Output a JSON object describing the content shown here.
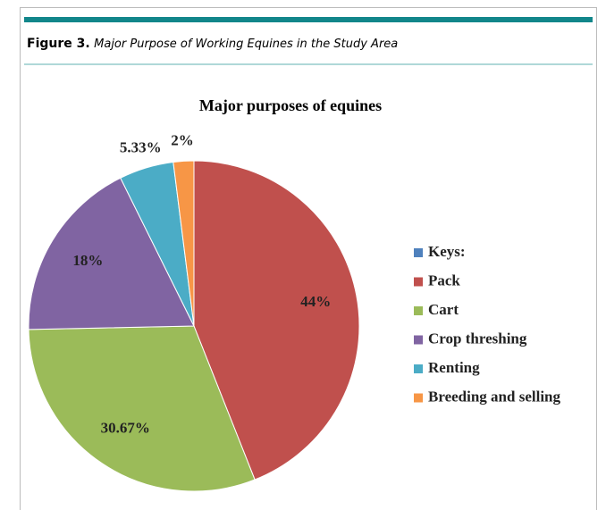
{
  "figure": {
    "label": "Figure 3.",
    "caption": "Major Purpose of Working Equines in the Study Area"
  },
  "chart_data": {
    "type": "pie",
    "title": "Major purposes of equines",
    "categories": [
      "Keys:",
      "Pack",
      "Cart",
      "Crop threshing",
      "Renting",
      "Breeding and selling"
    ],
    "values": [
      0,
      44,
      30.67,
      18,
      5.33,
      2
    ],
    "value_labels": [
      null,
      "44%",
      "30.67%",
      "18%",
      "5.33%",
      "2%"
    ],
    "colors": [
      "#4f81bd",
      "#c0504d",
      "#9bbb59",
      "#8064a2",
      "#4bacc6",
      "#f79646"
    ],
    "legend": "right"
  }
}
